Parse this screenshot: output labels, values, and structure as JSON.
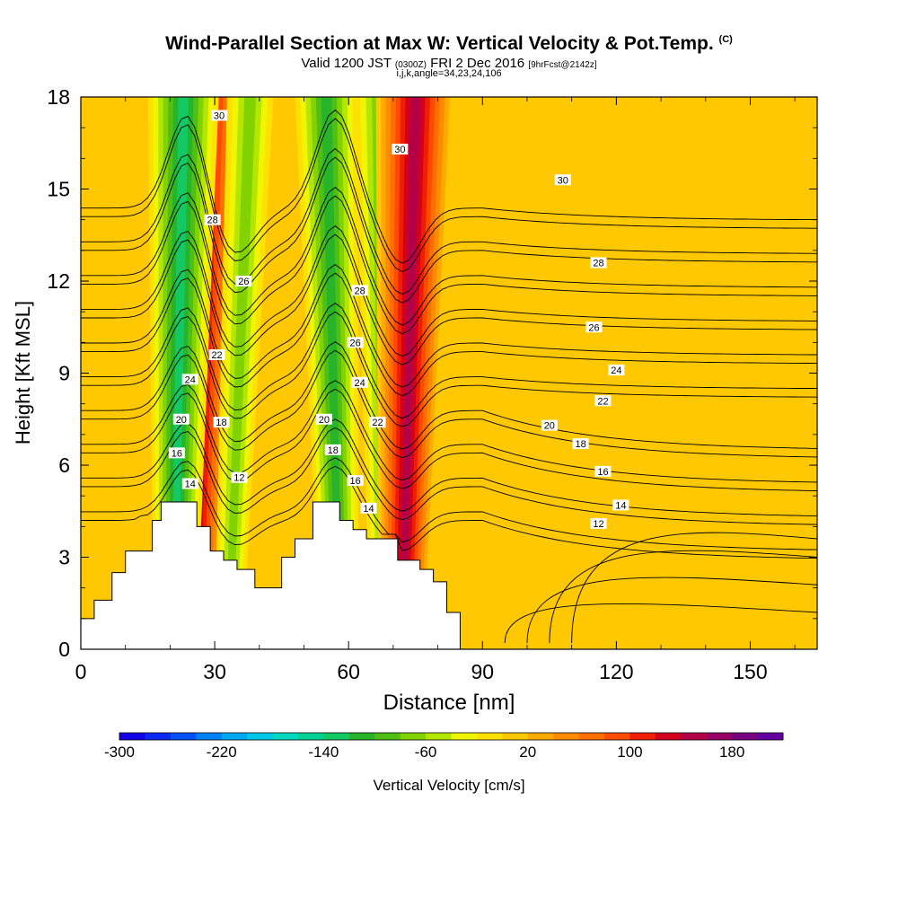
{
  "title": {
    "main": "Wind-Parallel Section at Max W: Vertical Velocity & Pot.Temp.",
    "copyright": "(C)",
    "valid_prefix": "Valid 1200 JST",
    "valid_utc": "(0300Z)",
    "valid_date": "FRI 2 Dec 2016",
    "forecast": "[9hrFcst@2142z]",
    "indices": "i,j,k,angle=34,23,24,106"
  },
  "chart_data": {
    "type": "heatmap",
    "xlabel": "Distance [nm]",
    "ylabel": "Height [Kft MSL]",
    "xlim": [
      0,
      165
    ],
    "ylim": [
      0,
      18
    ],
    "x_ticks": [
      0,
      30,
      60,
      90,
      120,
      150
    ],
    "y_ticks": [
      0,
      3,
      6,
      9,
      12,
      15,
      18
    ],
    "colorbar": {
      "label": "Vertical Velocity [cm/s]",
      "min": -300,
      "max": 220,
      "step": 20,
      "tick_values": [
        -300,
        -220,
        -140,
        -60,
        20,
        100,
        180
      ],
      "colors": [
        "#1400e6",
        "#0a28f0",
        "#0050f5",
        "#0080f5",
        "#00a8f0",
        "#00c8e6",
        "#00d8c0",
        "#00d296",
        "#14c864",
        "#28b428",
        "#50be14",
        "#82d200",
        "#b4e600",
        "#f0f500",
        "#ffe100",
        "#ffc800",
        "#ffaa00",
        "#ff8c00",
        "#ff6e00",
        "#ff4b00",
        "#f01e00",
        "#d2001e",
        "#b40046",
        "#960064",
        "#780082",
        "#6400a0"
      ]
    },
    "terrain_profile": [
      {
        "x": 0,
        "top": 1.0
      },
      {
        "x": 3,
        "top": 1.6
      },
      {
        "x": 7,
        "top": 2.5
      },
      {
        "x": 10,
        "top": 3.2
      },
      {
        "x": 13,
        "top": 3.2
      },
      {
        "x": 13,
        "top": 3.2
      },
      {
        "x": 16,
        "top": 4.2
      },
      {
        "x": 18,
        "top": 4.2
      },
      {
        "x": 18,
        "top": 4.8
      },
      {
        "x": 26,
        "top": 4.8
      },
      {
        "x": 26,
        "top": 4.0
      },
      {
        "x": 29,
        "top": 3.2
      },
      {
        "x": 32,
        "top": 2.9
      },
      {
        "x": 35,
        "top": 2.6
      },
      {
        "x": 39,
        "top": 2.0
      },
      {
        "x": 42,
        "top": 2.0
      },
      {
        "x": 45,
        "top": 3.0
      },
      {
        "x": 48,
        "top": 3.6
      },
      {
        "x": 52,
        "top": 4.2
      },
      {
        "x": 52,
        "top": 4.8
      },
      {
        "x": 58,
        "top": 4.8
      },
      {
        "x": 58,
        "top": 4.2
      },
      {
        "x": 61,
        "top": 3.9
      },
      {
        "x": 64,
        "top": 3.6
      },
      {
        "x": 71,
        "top": 3.6
      },
      {
        "x": 71,
        "top": 2.9
      },
      {
        "x": 76,
        "top": 2.6
      },
      {
        "x": 79,
        "top": 2.2
      },
      {
        "x": 82,
        "top": 1.2
      },
      {
        "x": 85,
        "top": 0.3
      }
    ],
    "w_features": [
      {
        "x": 28.5,
        "x_bottom": 26,
        "value": 140
      },
      {
        "x": 23,
        "x_bottom": 21,
        "value": -140
      },
      {
        "x": 38,
        "x_bottom": 33,
        "value": -80
      },
      {
        "x": 55,
        "x_bottom": 58,
        "value": -110
      },
      {
        "x": 66.5,
        "x_bottom": 68,
        "value": -80
      },
      {
        "x": 75,
        "x_bottom": 72,
        "value": 150
      },
      {
        "x": 120,
        "x_bottom": 118,
        "value": 20
      },
      {
        "x": 135,
        "x_bottom": 150,
        "value": 20
      }
    ],
    "theta_contours": [
      {
        "level": 12
      },
      {
        "level": 14
      },
      {
        "level": 16
      },
      {
        "level": 18
      },
      {
        "level": 20
      },
      {
        "level": 22
      },
      {
        "level": 24
      },
      {
        "level": 26
      },
      {
        "level": 28
      },
      {
        "level": 30
      }
    ],
    "contour_labels": [
      {
        "text": "30",
        "x": 31,
        "y": 17.4
      },
      {
        "text": "28",
        "x": 29.5,
        "y": 14.0
      },
      {
        "text": "26",
        "x": 36.5,
        "y": 12.0
      },
      {
        "text": "22",
        "x": 30.5,
        "y": 9.6
      },
      {
        "text": "24",
        "x": 24.5,
        "y": 8.8
      },
      {
        "text": "18",
        "x": 31.5,
        "y": 7.4
      },
      {
        "text": "20",
        "x": 22.5,
        "y": 7.5
      },
      {
        "text": "16",
        "x": 21.5,
        "y": 6.4
      },
      {
        "text": "14",
        "x": 24.5,
        "y": 5.4
      },
      {
        "text": "12",
        "x": 35.5,
        "y": 5.6
      },
      {
        "text": "30",
        "x": 71.5,
        "y": 16.3
      },
      {
        "text": "28",
        "x": 62.5,
        "y": 11.7
      },
      {
        "text": "26",
        "x": 61.5,
        "y": 10.0
      },
      {
        "text": "24",
        "x": 62.5,
        "y": 8.7
      },
      {
        "text": "22",
        "x": 66.5,
        "y": 7.4
      },
      {
        "text": "20",
        "x": 54.5,
        "y": 7.5
      },
      {
        "text": "18",
        "x": 56.5,
        "y": 6.5
      },
      {
        "text": "16",
        "x": 61.5,
        "y": 5.5
      },
      {
        "text": "14",
        "x": 64.5,
        "y": 4.6
      },
      {
        "text": "30",
        "x": 108,
        "y": 15.3
      },
      {
        "text": "28",
        "x": 116,
        "y": 12.6
      },
      {
        "text": "26",
        "x": 115,
        "y": 10.5
      },
      {
        "text": "24",
        "x": 120,
        "y": 9.1
      },
      {
        "text": "22",
        "x": 117,
        "y": 8.1
      },
      {
        "text": "20",
        "x": 105,
        "y": 7.3
      },
      {
        "text": "18",
        "x": 112,
        "y": 6.7
      },
      {
        "text": "16",
        "x": 117,
        "y": 5.8
      },
      {
        "text": "14",
        "x": 121,
        "y": 4.7
      },
      {
        "text": "12",
        "x": 116,
        "y": 4.1
      }
    ]
  }
}
